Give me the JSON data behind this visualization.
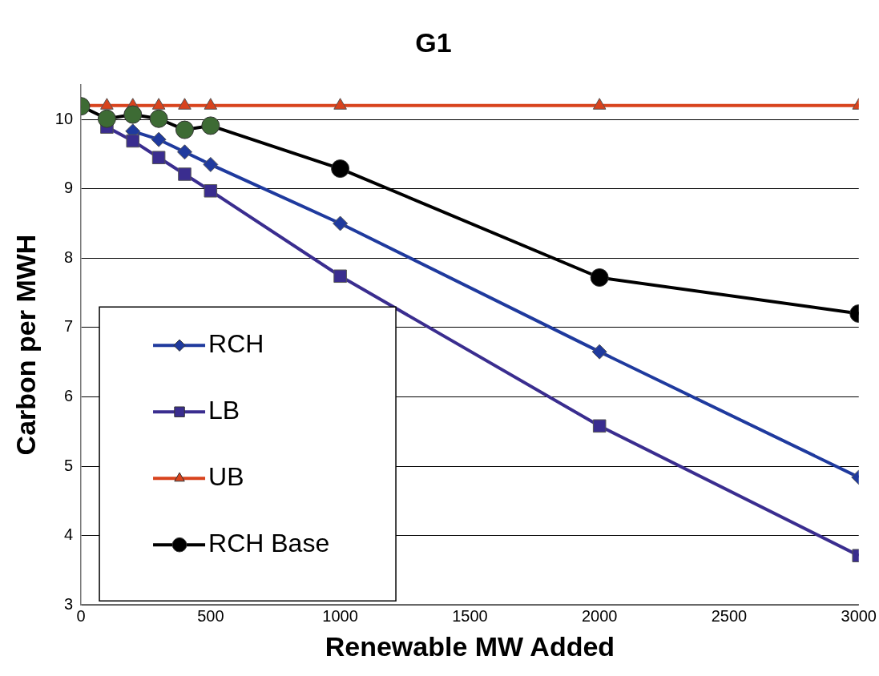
{
  "chart_data": {
    "type": "line",
    "title": "G1",
    "xlabel": "Renewable MW Added",
    "ylabel": "Carbon per MWH",
    "x": [
      0,
      100,
      200,
      300,
      400,
      500,
      1000,
      2000,
      3000
    ],
    "xlim": [
      0,
      3000
    ],
    "xticks": [
      0,
      500,
      1000,
      1500,
      2000,
      2500,
      3000
    ],
    "ylim": [
      3,
      10.5
    ],
    "yticks": [
      3,
      4,
      5,
      6,
      7,
      8,
      9,
      10
    ],
    "grid": "y",
    "legend": "bottom left",
    "series": [
      {
        "name": "RCH",
        "color": "#1f3a9e",
        "marker": "diamond",
        "values": [
          null,
          null,
          9.83,
          9.71,
          9.53,
          9.35,
          8.5,
          6.65,
          4.84
        ]
      },
      {
        "name": "LB",
        "color": "#3a2d8f",
        "marker": "square",
        "values": [
          null,
          9.89,
          9.69,
          9.45,
          9.21,
          8.97,
          7.74,
          5.58,
          3.71
        ]
      },
      {
        "name": "UB",
        "color": "#d8431d",
        "marker": "triangle",
        "values": [
          10.2,
          10.2,
          10.2,
          10.2,
          10.2,
          10.2,
          10.2,
          10.2,
          10.2
        ]
      },
      {
        "name": "RCH Base",
        "color": "#000000",
        "marker": "circle",
        "colors": [
          "#3d6b34",
          "#3d6b34",
          "#3d6b34",
          "#3d6b34",
          "#3d6b34",
          "#3d6b34",
          "#000000",
          "#000000",
          "#000000"
        ],
        "values": [
          10.19,
          10.01,
          10.07,
          10.01,
          9.85,
          9.91,
          9.29,
          7.72,
          7.2
        ]
      }
    ]
  }
}
